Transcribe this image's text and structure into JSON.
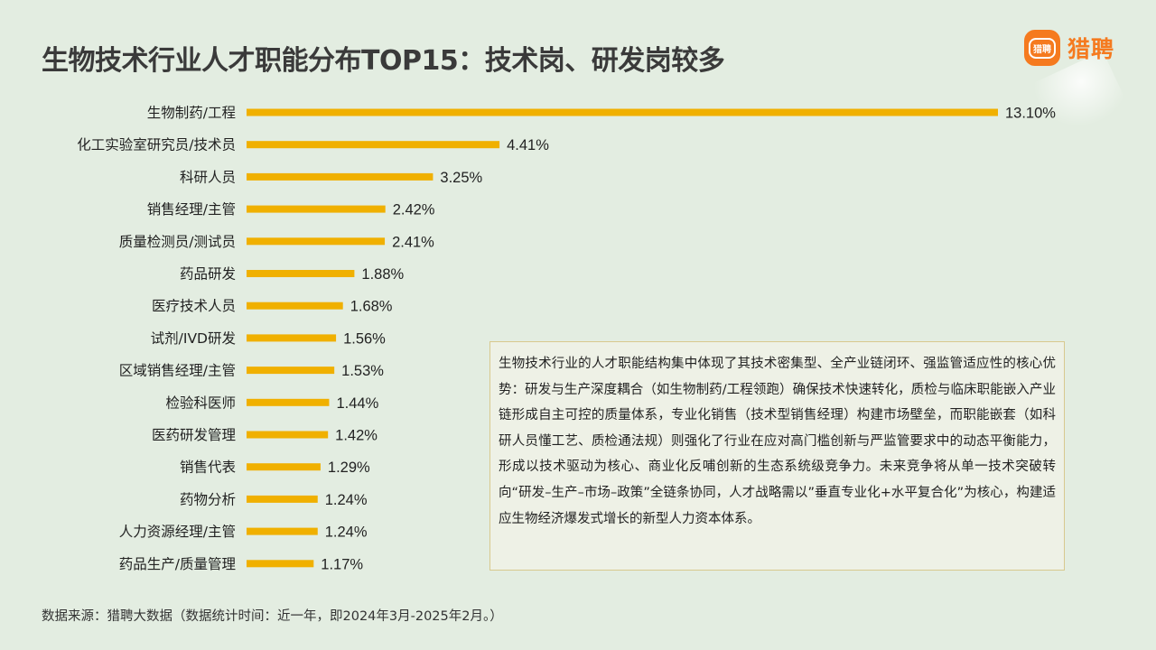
{
  "title": "生物技术行业人才职能分布TOP15：技术岗、研发岗较多",
  "logo": {
    "badge_text": "猎聘",
    "text": "猎聘",
    "brand_color": "#f57a1f"
  },
  "chart_data": {
    "type": "bar",
    "orientation": "horizontal",
    "categories": [
      "生物制药/工程",
      "化工实验室研究员/技术员",
      "科研人员",
      "销售经理/主管",
      "质量检测员/测试员",
      "药品研发",
      "医疗技术人员",
      "试剂/IVD研发",
      "区域销售经理/主管",
      "检验科医师",
      "医药研发管理",
      "销售代表",
      "药物分析",
      "人力资源经理/主管",
      "药品生产/质量管理"
    ],
    "values": [
      13.1,
      4.41,
      3.25,
      2.42,
      2.41,
      1.88,
      1.68,
      1.56,
      1.53,
      1.44,
      1.42,
      1.29,
      1.24,
      1.24,
      1.17
    ],
    "value_labels": [
      "13.10%",
      "4.41%",
      "3.25%",
      "2.42%",
      "2.41%",
      "1.88%",
      "1.68%",
      "1.56%",
      "1.53%",
      "1.44%",
      "1.42%",
      "1.29%",
      "1.24%",
      "1.24%",
      "1.17%"
    ],
    "bar_color": "#f0b000",
    "grid": false,
    "legend": "none"
  },
  "note": "生物技术行业的人才职能结构集中体现了其技术密集型、全产业链闭环、强监管适应性的核心优势：研发与生产深度耦合（如生物制药/工程领跑）确保技术快速转化，质检与临床职能嵌入产业链形成自主可控的质量体系，专业化销售（技术型销售经理）构建市场壁垒，而职能嵌套（如科研人员懂工艺、质检通法规）则强化了行业在应对高门槛创新与严监管要求中的动态平衡能力，形成以技术驱动为核心、商业化反哺创新的生态系统级竞争力。未来竞争将从单一技术突破转向“研发–生产–市场–政策”全链条协同，人才战略需以”垂直专业化+水平复合化”为核心，构建适应生物经济爆发式增长的新型人力资本体系。",
  "source": "数据来源：猎聘大数据（数据统计时间：近一年，即2024年3月-2025年2月。）"
}
